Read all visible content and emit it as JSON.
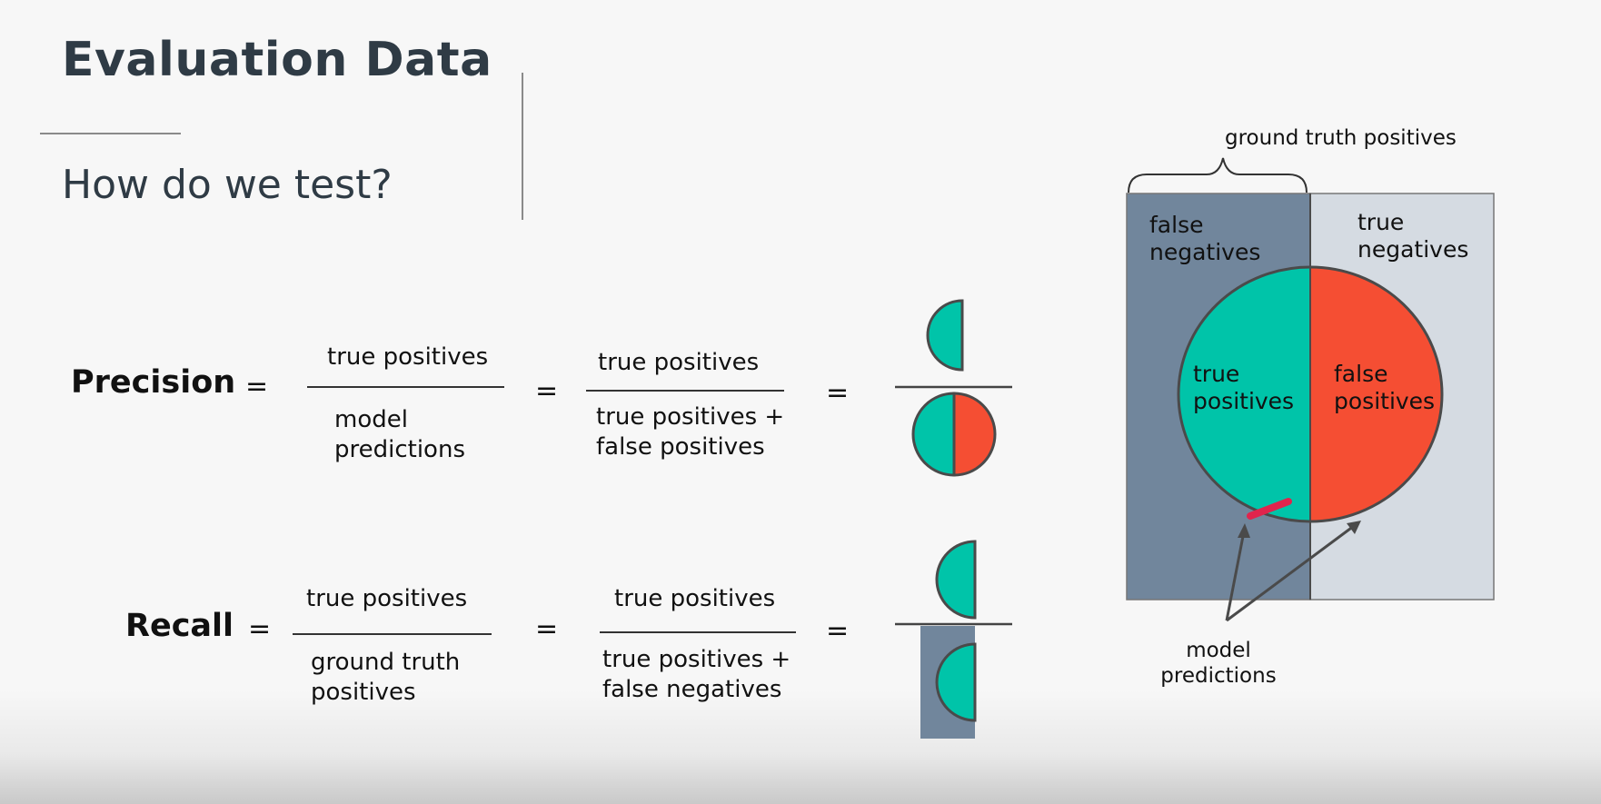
{
  "title": "Evaluation Data",
  "subtitle": "How do we test?",
  "precision": {
    "label": "Precision",
    "eq1": "=",
    "f1_num": "true positives",
    "f1_den_line1": "model",
    "f1_den_line2": "predictions",
    "eq2": "=",
    "f2_num": "true positives",
    "f2_den_line1": "true positives +",
    "f2_den_line2": "false positives",
    "eq3": "="
  },
  "recall": {
    "label": "Recall",
    "eq1": "=",
    "f1_num": "true positives",
    "f1_den_line1": "ground truth",
    "f1_den_line2": "positives",
    "eq2": "=",
    "f2_num": "true positives",
    "f2_den_line1": "true positives +",
    "f2_den_line2": "false negatives",
    "eq3": "="
  },
  "diagram": {
    "brace_label": "ground truth positives",
    "fn_line1": "false",
    "fn_line2": "negatives",
    "tn_line1": "true",
    "tn_line2": "negatives",
    "tp_line1": "true",
    "tp_line2": "positives",
    "fp_line1": "false",
    "fp_line2": "positives",
    "pred_line1": "model",
    "pred_line2": "predictions"
  },
  "colors": {
    "teal": "#00c4a9",
    "red": "#f54e33",
    "slate": "#71869c",
    "light_gray": "#d5dbe2",
    "outline": "#4a4a4a"
  }
}
